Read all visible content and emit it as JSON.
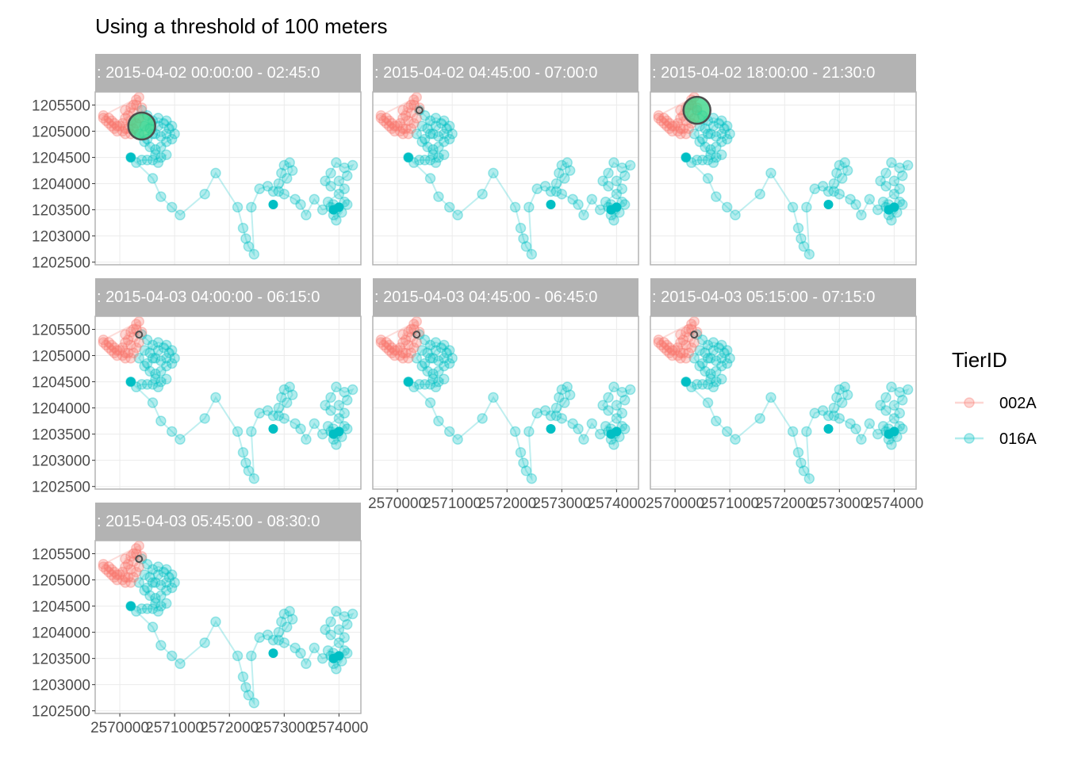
{
  "chart_data": {
    "type": "scatter",
    "title": "Using a threshold of 100 meters",
    "xlabel": "",
    "ylabel": "",
    "xlim": [
      2569550,
      2574400
    ],
    "ylim": [
      1202450,
      1205750
    ],
    "x_ticks": [
      "2570000",
      "2571000",
      "2572000",
      "2573000",
      "2574000"
    ],
    "x_tick_values": [
      2570000,
      2571000,
      2572000,
      2573000,
      2574000
    ],
    "y_ticks": [
      "1202500",
      "1203000",
      "1203500",
      "1204000",
      "1204500",
      "1205000",
      "1205500"
    ],
    "y_tick_values": [
      1202500,
      1203000,
      1203500,
      1204000,
      1204500,
      1205000,
      1205500
    ],
    "grid": true,
    "legend": {
      "title": "TierID",
      "position": "right"
    },
    "facet_labels": [
      ": 2015-04-02 00:00:00 - 02:45:0",
      ": 2015-04-02 04:45:00 - 07:00:0",
      ": 2015-04-02 18:00:00 - 21:30:0",
      ": 2015-04-03 04:00:00 - 06:15:0",
      ": 2015-04-03 04:45:00 - 06:45:0",
      ": 2015-04-03 05:15:00 - 07:15:0",
      ": 2015-04-03 05:45:00 - 08:30:0"
    ],
    "highlight_centers": [
      {
        "x": 2570400,
        "y": 1205100,
        "large": true
      },
      {
        "x": 2570400,
        "y": 1205400,
        "large": false
      },
      {
        "x": 2570400,
        "y": 1205400,
        "large": true
      },
      {
        "x": 2570350,
        "y": 1205400,
        "large": false
      },
      {
        "x": 2570350,
        "y": 1205400,
        "large": false
      },
      {
        "x": 2570350,
        "y": 1205400,
        "large": false
      },
      {
        "x": 2570350,
        "y": 1205400,
        "large": false
      }
    ],
    "series": [
      {
        "name": "002A",
        "color": "#F8766D",
        "points": [
          [
            2569700,
            1205250
          ],
          [
            2569750,
            1205200
          ],
          [
            2569800,
            1205150
          ],
          [
            2569850,
            1205100
          ],
          [
            2569900,
            1205050
          ],
          [
            2569950,
            1205000
          ],
          [
            2569850,
            1205200
          ],
          [
            2569900,
            1205150
          ],
          [
            2570000,
            1205100
          ],
          [
            2570050,
            1205150
          ],
          [
            2570100,
            1205250
          ],
          [
            2570150,
            1205300
          ],
          [
            2570100,
            1205400
          ],
          [
            2570200,
            1205450
          ],
          [
            2570250,
            1205500
          ],
          [
            2570300,
            1205600
          ],
          [
            2570300,
            1205500
          ],
          [
            2570250,
            1205350
          ],
          [
            2570200,
            1205200
          ],
          [
            2570150,
            1205050
          ],
          [
            2570100,
            1204950
          ],
          [
            2570050,
            1205000
          ],
          [
            2569950,
            1205100
          ],
          [
            2569800,
            1205250
          ],
          [
            2569700,
            1205300
          ],
          [
            2570350,
            1205650
          ],
          [
            2570400,
            1205450
          ],
          [
            2570350,
            1205250
          ],
          [
            2570300,
            1205150
          ],
          [
            2570250,
            1205050
          ],
          [
            2570200,
            1204950
          ],
          [
            2570100,
            1205050
          ]
        ]
      },
      {
        "name": "016A",
        "color": "#00BFC4",
        "points": [
          [
            2570400,
            1205400
          ],
          [
            2570500,
            1205300
          ],
          [
            2570600,
            1205200
          ],
          [
            2570550,
            1205050
          ],
          [
            2570650,
            1204950
          ],
          [
            2570750,
            1204900
          ],
          [
            2570850,
            1204950
          ],
          [
            2570900,
            1205050
          ],
          [
            2570800,
            1205150
          ],
          [
            2570700,
            1205100
          ],
          [
            2570600,
            1204950
          ],
          [
            2570500,
            1204850
          ],
          [
            2570550,
            1204700
          ],
          [
            2570650,
            1204650
          ],
          [
            2570750,
            1204700
          ],
          [
            2570850,
            1204800
          ],
          [
            2570950,
            1204850
          ],
          [
            2571000,
            1204950
          ],
          [
            2570950,
            1205100
          ],
          [
            2570850,
            1205200
          ],
          [
            2570700,
            1205250
          ],
          [
            2570450,
            1205100
          ],
          [
            2570350,
            1204950
          ],
          [
            2570450,
            1204800
          ],
          [
            2570650,
            1204550
          ],
          [
            2570750,
            1204500
          ],
          [
            2570850,
            1204550
          ],
          [
            2570700,
            1204400
          ],
          [
            2570600,
            1204450
          ],
          [
            2570500,
            1204450
          ],
          [
            2570400,
            1204450
          ],
          [
            2570300,
            1204400
          ],
          [
            2570200,
            1204500
          ],
          [
            2570600,
            1204100
          ],
          [
            2570750,
            1203750
          ],
          [
            2570950,
            1203550
          ],
          [
            2571100,
            1203400
          ],
          [
            2571550,
            1203800
          ],
          [
            2571750,
            1204200
          ],
          [
            2572150,
            1203550
          ],
          [
            2572250,
            1203150
          ],
          [
            2572300,
            1202950
          ],
          [
            2572350,
            1202800
          ],
          [
            2572450,
            1202650
          ],
          [
            2572400,
            1203550
          ],
          [
            2572550,
            1203900
          ],
          [
            2572700,
            1203950
          ],
          [
            2572800,
            1203850
          ],
          [
            2572900,
            1204000
          ],
          [
            2572950,
            1204200
          ],
          [
            2573000,
            1204350
          ],
          [
            2573100,
            1204400
          ],
          [
            2573150,
            1204250
          ],
          [
            2573050,
            1204100
          ],
          [
            2572900,
            1203850
          ],
          [
            2573000,
            1203800
          ],
          [
            2573200,
            1203700
          ],
          [
            2573300,
            1203600
          ],
          [
            2573400,
            1203400
          ],
          [
            2573550,
            1203700
          ],
          [
            2573700,
            1203500
          ],
          [
            2573850,
            1203550
          ],
          [
            2573950,
            1203500
          ],
          [
            2573900,
            1203400
          ],
          [
            2573950,
            1203300
          ],
          [
            2574050,
            1203450
          ],
          [
            2574100,
            1203650
          ],
          [
            2574150,
            1203600
          ],
          [
            2574000,
            1203800
          ],
          [
            2573850,
            1203950
          ],
          [
            2573750,
            1204050
          ],
          [
            2573850,
            1204200
          ],
          [
            2573950,
            1204400
          ],
          [
            2574100,
            1204300
          ],
          [
            2574250,
            1204350
          ],
          [
            2574150,
            1204150
          ],
          [
            2574000,
            1204050
          ],
          [
            2574100,
            1203900
          ],
          [
            2573800,
            1203650
          ],
          [
            2573900,
            1203600
          ]
        ],
        "solid_points": [
          [
            2570200,
            1204500
          ],
          [
            2572800,
            1203600
          ],
          [
            2574000,
            1203550
          ],
          [
            2573900,
            1203500
          ]
        ]
      }
    ]
  }
}
